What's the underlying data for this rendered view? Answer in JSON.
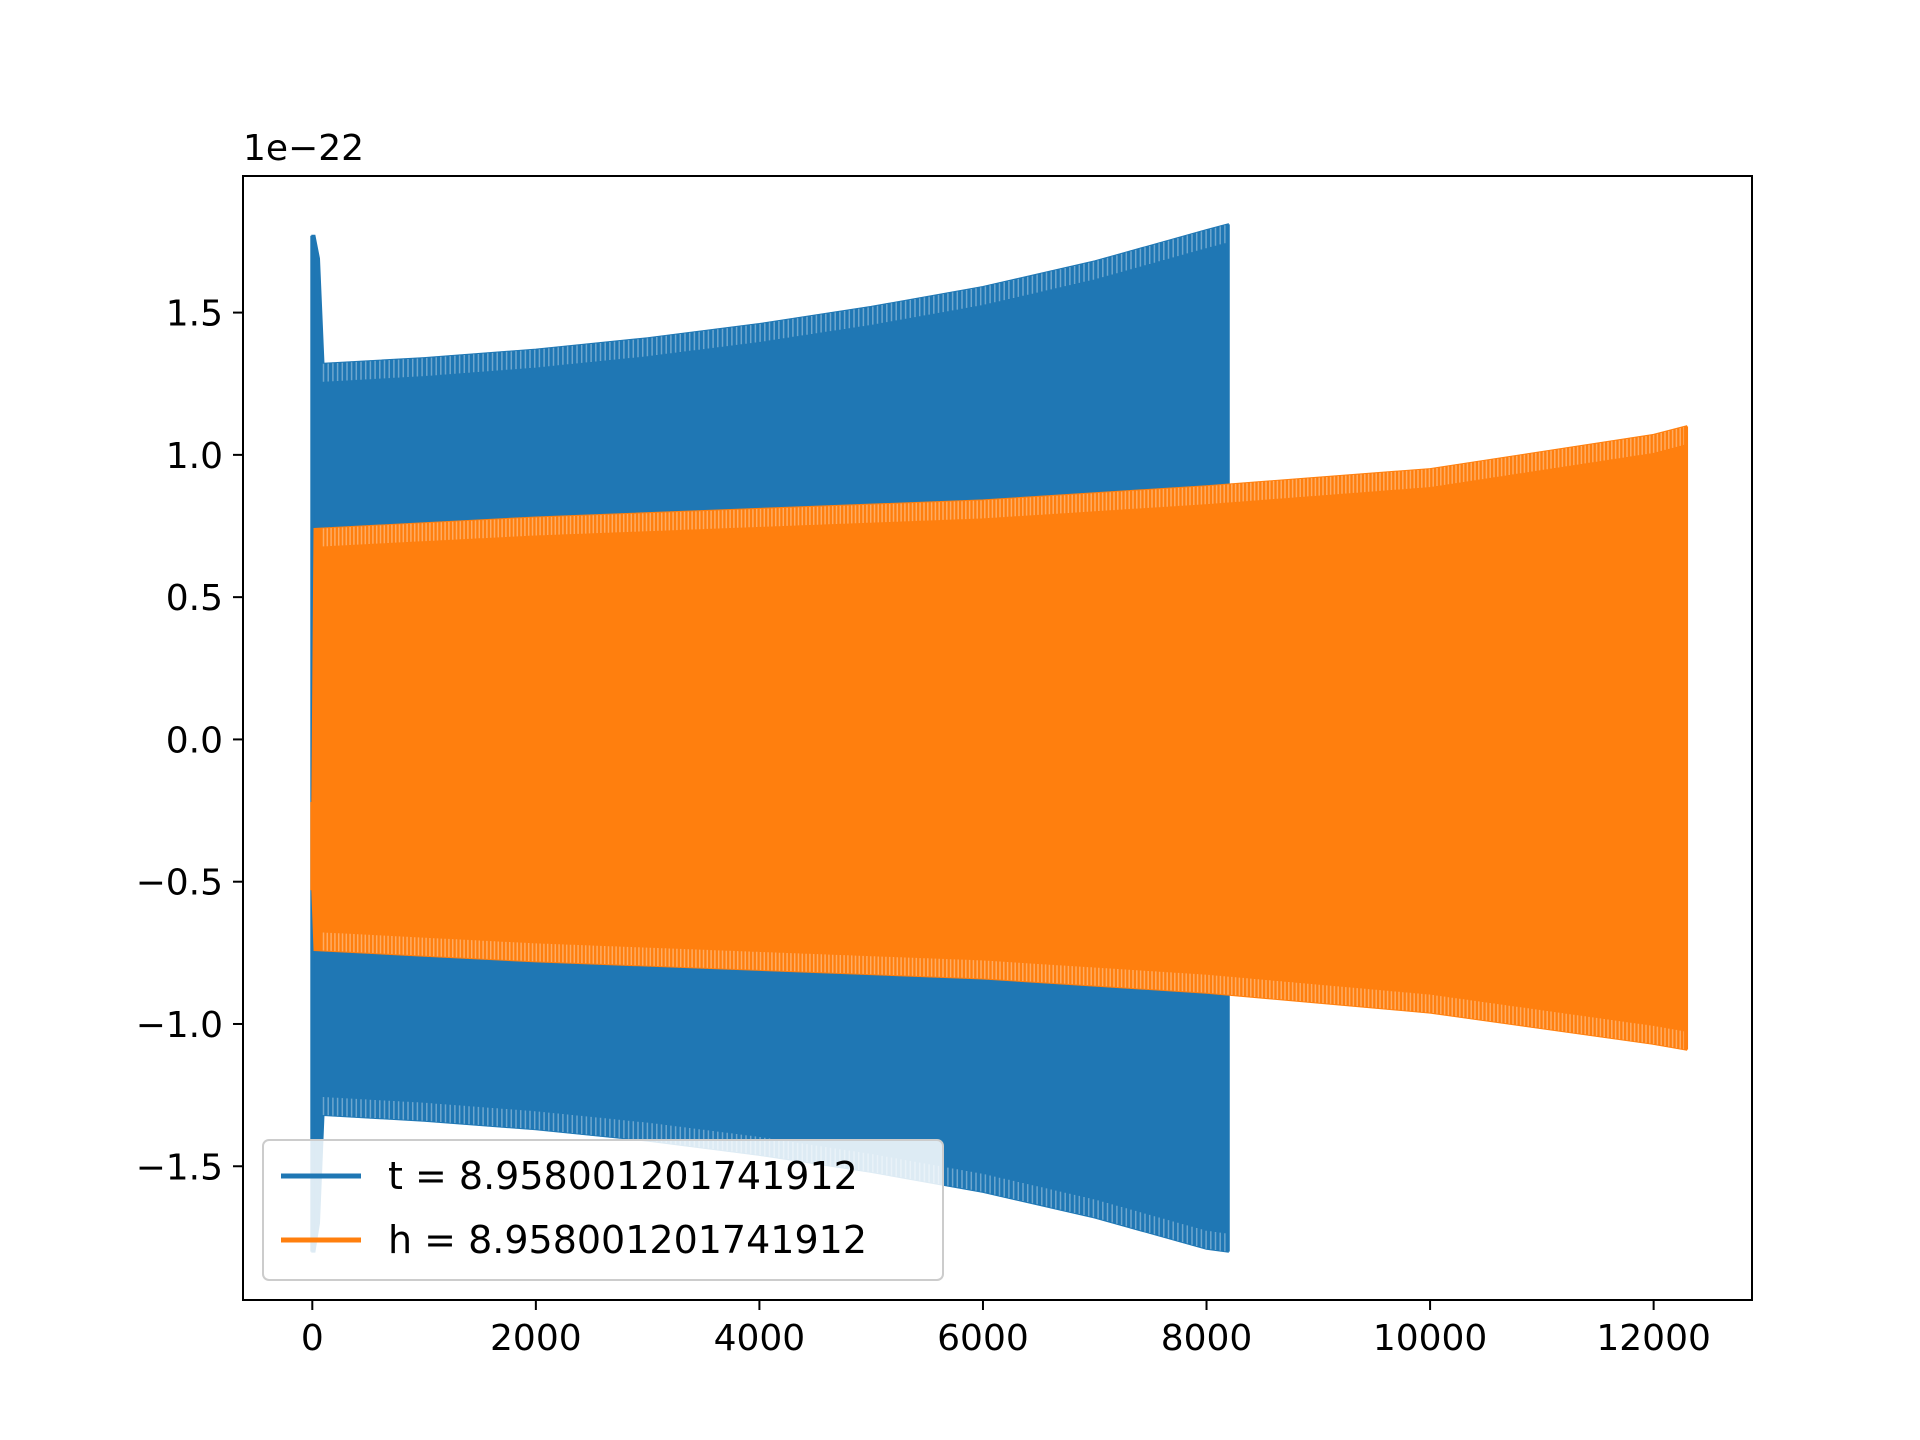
{
  "chart_data": {
    "type": "line",
    "title": "",
    "xlabel": "",
    "ylabel": "",
    "y_offset_label": "1e−22",
    "xlim": [
      -620,
      12880
    ],
    "ylim": [
      -1.97,
      1.98
    ],
    "xticks": [
      0,
      2000,
      4000,
      6000,
      8000,
      10000,
      12000
    ],
    "xtick_labels": [
      "0",
      "2000",
      "4000",
      "6000",
      "8000",
      "10000",
      "12000"
    ],
    "yticks": [
      -1.5,
      -1.0,
      -0.5,
      0.0,
      0.5,
      1.0,
      1.5
    ],
    "ytick_labels": [
      "−1.5",
      "−1.0",
      "−0.5",
      "0.0",
      "0.5",
      "1.0",
      "1.5"
    ],
    "grid": false,
    "legend_position": "lower-left",
    "series": [
      {
        "name": "t = 8.958001201741912",
        "color": "#1f77b4",
        "x_range": [
          0,
          8190
        ],
        "envelope": {
          "x": [
            0,
            20,
            60,
            100,
            1000,
            2000,
            3000,
            4000,
            5000,
            6000,
            7000,
            8000,
            8190
          ],
          "upper": [
            1.77,
            1.77,
            1.69,
            1.32,
            1.34,
            1.37,
            1.41,
            1.46,
            1.52,
            1.59,
            1.68,
            1.79,
            1.81
          ],
          "lower": [
            -1.8,
            -1.8,
            -1.7,
            -1.32,
            -1.34,
            -1.37,
            -1.41,
            -1.46,
            -1.52,
            -1.59,
            -1.68,
            -1.79,
            -1.8
          ]
        }
      },
      {
        "name": "h = 8.958001201741912",
        "color": "#ff7f0e",
        "x_range": [
          0,
          12290
        ],
        "envelope": {
          "x": [
            0,
            20,
            1000,
            2000,
            4000,
            6000,
            8000,
            10000,
            12000,
            12290
          ],
          "upper": [
            -0.22,
            0.74,
            0.76,
            0.78,
            0.81,
            0.84,
            0.89,
            0.95,
            1.07,
            1.1
          ],
          "lower": [
            -0.53,
            -0.74,
            -0.76,
            -0.78,
            -0.81,
            -0.84,
            -0.89,
            -0.96,
            -1.07,
            -1.09
          ]
        }
      }
    ]
  }
}
